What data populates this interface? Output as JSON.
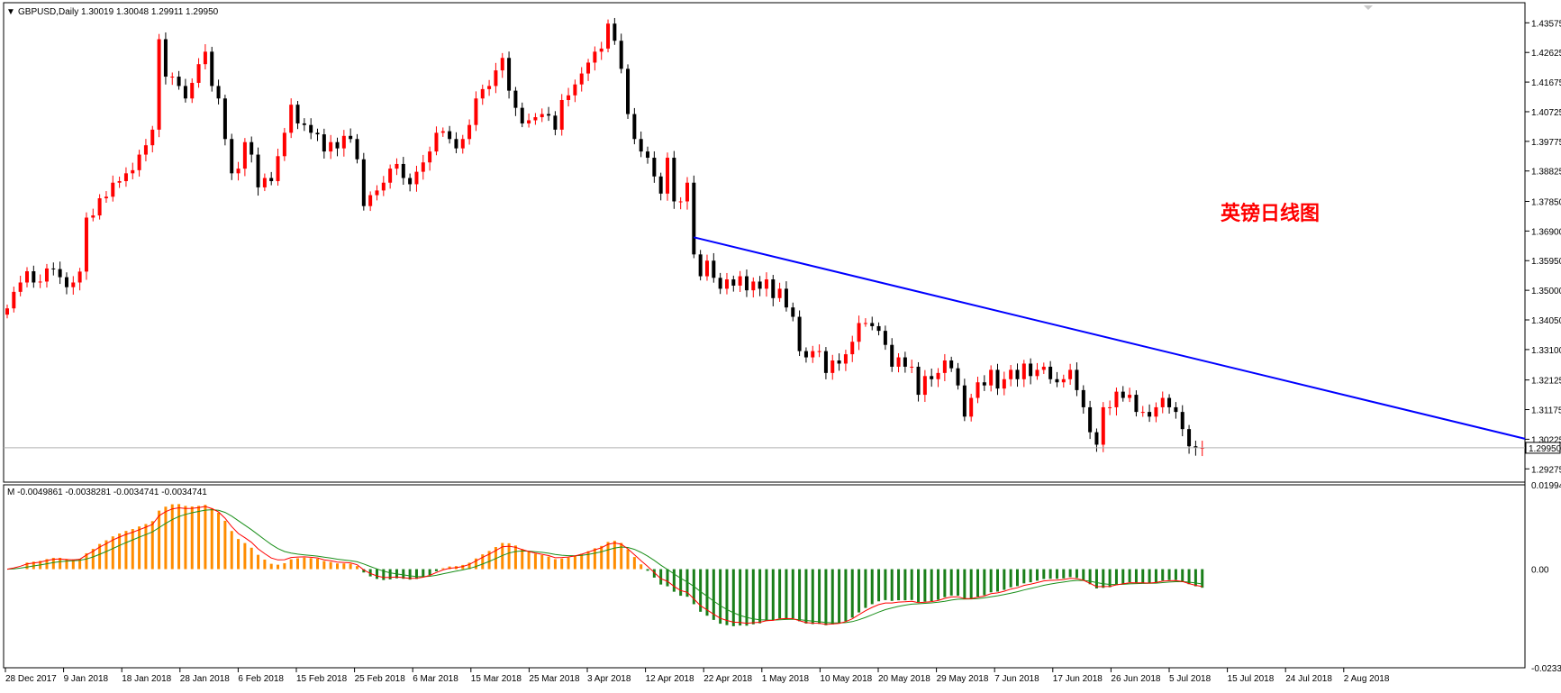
{
  "header": {
    "symbol_line": "GBPUSD,Daily  1.30019 1.30048 1.29911 1.29950",
    "indicator_line": "M -0.0049861 -0.0038281 -0.0034741 -0.0034741"
  },
  "annotation": {
    "text": "英镑日线图",
    "color": "#ff0000"
  },
  "colors": {
    "bull": "#ff0000",
    "bear": "#000000",
    "trendline": "#0000ff",
    "hist_pos": "#ff8c00",
    "hist_neg": "#1a7f1a",
    "signal_red": "#ff0000",
    "signal_green": "#1a8f1a"
  },
  "price_axis": {
    "labels": [
      "1.43575",
      "1.42625",
      "1.41675",
      "1.40725",
      "1.39775",
      "1.38825",
      "1.37850",
      "1.36900",
      "1.35950",
      "1.35000",
      "1.34050",
      "1.33100",
      "1.32125",
      "1.31175",
      "1.30225",
      "1.29275"
    ],
    "current_price": "1.29950"
  },
  "indicator_axis": {
    "labels": [
      "0.0199418",
      "0.00",
      "-0.0233306"
    ]
  },
  "date_axis": {
    "labels": [
      "28 Dec 2017",
      "9 Jan 2018",
      "18 Jan 2018",
      "28 Jan 2018",
      "6 Feb 2018",
      "15 Feb 2018",
      "25 Feb 2018",
      "6 Mar 2018",
      "15 Mar 2018",
      "25 Mar 2018",
      "3 Apr 2018",
      "12 Apr 2018",
      "22 Apr 2018",
      "1 May 2018",
      "10 May 2018",
      "20 May 2018",
      "29 May 2018",
      "7 Jun 2018",
      "17 Jun 2018",
      "26 Jun 2018",
      "5 Jul 2018",
      "15 Jul 2018",
      "24 Jul 2018",
      "2 Aug 2018"
    ]
  },
  "chart_data": {
    "type": "candlestick",
    "symbol": "GBPUSD",
    "timeframe": "Daily",
    "ylim": [
      1.2885,
      1.4422
    ],
    "trendline": {
      "from": [
        1.367
      ],
      "to": [
        1.3024
      ]
    },
    "candles_close": [
      1.3442,
      1.3495,
      1.3525,
      1.3561,
      1.3525,
      1.3528,
      1.357,
      1.3568,
      1.3542,
      1.351,
      1.3525,
      1.356,
      1.3733,
      1.374,
      1.3795,
      1.38,
      1.3845,
      1.385,
      1.3875,
      1.3885,
      1.3935,
      1.3965,
      1.4015,
      1.4305,
      1.4185,
      1.4185,
      1.4155,
      1.4115,
      1.4165,
      1.4225,
      1.4265,
      1.4155,
      1.4115,
      1.3985,
      1.3875,
      1.389,
      1.3975,
      1.3935,
      1.383,
      1.386,
      1.385,
      1.393,
      1.4005,
      1.4095,
      1.4035,
      1.403,
      1.4005,
      1.4,
      1.3945,
      1.3975,
      1.3955,
      1.3995,
      1.3985,
      1.392,
      1.377,
      1.3805,
      1.382,
      1.3845,
      1.389,
      1.3905,
      1.386,
      1.384,
      1.388,
      1.391,
      1.3945,
      1.4005,
      1.401,
      1.3985,
      1.3955,
      1.3985,
      1.403,
      1.4115,
      1.4145,
      1.4155,
      1.4205,
      1.4245,
      1.414,
      1.4085,
      1.4035,
      1.4045,
      1.4055,
      1.4065,
      1.406,
      1.4015,
      1.411,
      1.4125,
      1.416,
      1.4195,
      1.423,
      1.4265,
      1.4275,
      1.4355,
      1.43,
      1.421,
      1.4065,
      1.3985,
      1.3945,
      1.3925,
      1.3865,
      1.381,
      1.3925,
      1.3785,
      1.3785,
      1.3845,
      1.3615,
      1.3545,
      1.3595,
      1.354,
      1.3505,
      1.3535,
      1.3515,
      1.3545,
      1.35,
      1.3528,
      1.3505,
      1.3535,
      1.3475,
      1.3505,
      1.3445,
      1.3415,
      1.3305,
      1.3285,
      1.3305,
      1.3305,
      1.3235,
      1.3275,
      1.3265,
      1.3295,
      1.3335,
      1.3395,
      1.3395,
      1.3385,
      1.337,
      1.3325,
      1.3255,
      1.3285,
      1.3255,
      1.3255,
      1.3165,
      1.3225,
      1.3215,
      1.3235,
      1.3275,
      1.325,
      1.3195,
      1.3095,
      1.3155,
      1.3205,
      1.3195,
      1.3245,
      1.3185,
      1.3215,
      1.3245,
      1.3215,
      1.3265,
      1.3225,
      1.3245,
      1.3255,
      1.3215,
      1.3205,
      1.3215,
      1.3245,
      1.318,
      1.3125,
      1.3045,
      1.3005,
      1.3125,
      1.3125,
      1.3175,
      1.3155,
      1.3165,
      1.311,
      1.311,
      1.3095,
      1.3125,
      1.3155,
      1.3125,
      1.311,
      1.3055,
      1.3,
      1.2995,
      1.2995
    ]
  }
}
